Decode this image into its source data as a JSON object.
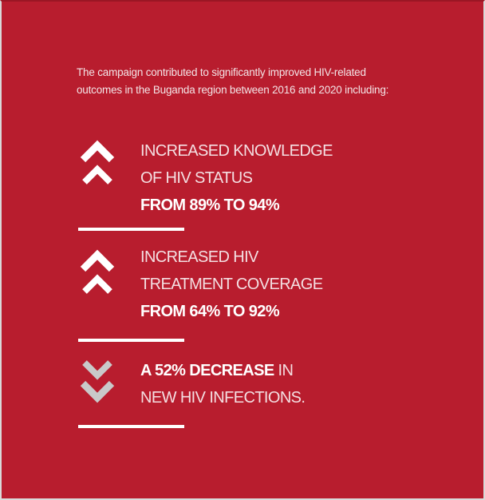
{
  "intro": [
    "The campaign contributed to significantly improved HIV-related",
    "outcomes in the Buganda region between 2016 and 2020 including:"
  ],
  "items": [
    {
      "lines": [
        "INCREASED KNOWLEDGE",
        "OF HIV STATUS"
      ],
      "highlight": "FROM 89% TO 94%"
    },
    {
      "lines": [
        "INCREASED HIV",
        "TREATMENT COVERAGE"
      ],
      "highlight": "FROM 64% TO 92%"
    },
    {
      "highlight": "A 52% DECREASE",
      "lines": [
        "IN",
        "NEW HIV INFECTIONS."
      ]
    }
  ]
}
